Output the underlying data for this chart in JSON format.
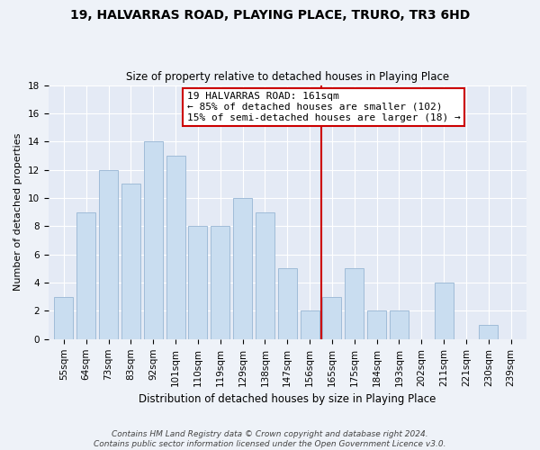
{
  "title": "19, HALVARRAS ROAD, PLAYING PLACE, TRURO, TR3 6HD",
  "subtitle": "Size of property relative to detached houses in Playing Place",
  "xlabel": "Distribution of detached houses by size in Playing Place",
  "ylabel": "Number of detached properties",
  "bar_labels": [
    "55sqm",
    "64sqm",
    "73sqm",
    "83sqm",
    "92sqm",
    "101sqm",
    "110sqm",
    "119sqm",
    "129sqm",
    "138sqm",
    "147sqm",
    "156sqm",
    "165sqm",
    "175sqm",
    "184sqm",
    "193sqm",
    "202sqm",
    "211sqm",
    "221sqm",
    "230sqm",
    "239sqm"
  ],
  "bar_values": [
    3,
    9,
    12,
    11,
    14,
    13,
    8,
    8,
    10,
    9,
    5,
    2,
    3,
    5,
    2,
    2,
    0,
    4,
    0,
    1,
    0
  ],
  "bar_color": "#c9ddf0",
  "bar_edge_color": "#a0bcd8",
  "vline_x_index": 11.5,
  "vline_color": "#cc0000",
  "annotation_line1": "19 HALVARRAS ROAD: 161sqm",
  "annotation_line2": "← 85% of detached houses are smaller (102)",
  "annotation_line3": "15% of semi-detached houses are larger (18) →",
  "annotation_box_edge_color": "#cc0000",
  "annotation_box_face_color": "#ffffff",
  "ylim": [
    0,
    18
  ],
  "yticks": [
    0,
    2,
    4,
    6,
    8,
    10,
    12,
    14,
    16,
    18
  ],
  "footer_line1": "Contains HM Land Registry data © Crown copyright and database right 2024.",
  "footer_line2": "Contains public sector information licensed under the Open Government Licence v3.0.",
  "title_fontsize": 10,
  "subtitle_fontsize": 8.5,
  "xlabel_fontsize": 8.5,
  "ylabel_fontsize": 8,
  "tick_fontsize": 7.5,
  "annotation_fontsize": 8,
  "footer_fontsize": 6.5,
  "background_color": "#eef2f8",
  "plot_background_color": "#e4eaf5",
  "grid_color": "#ffffff"
}
